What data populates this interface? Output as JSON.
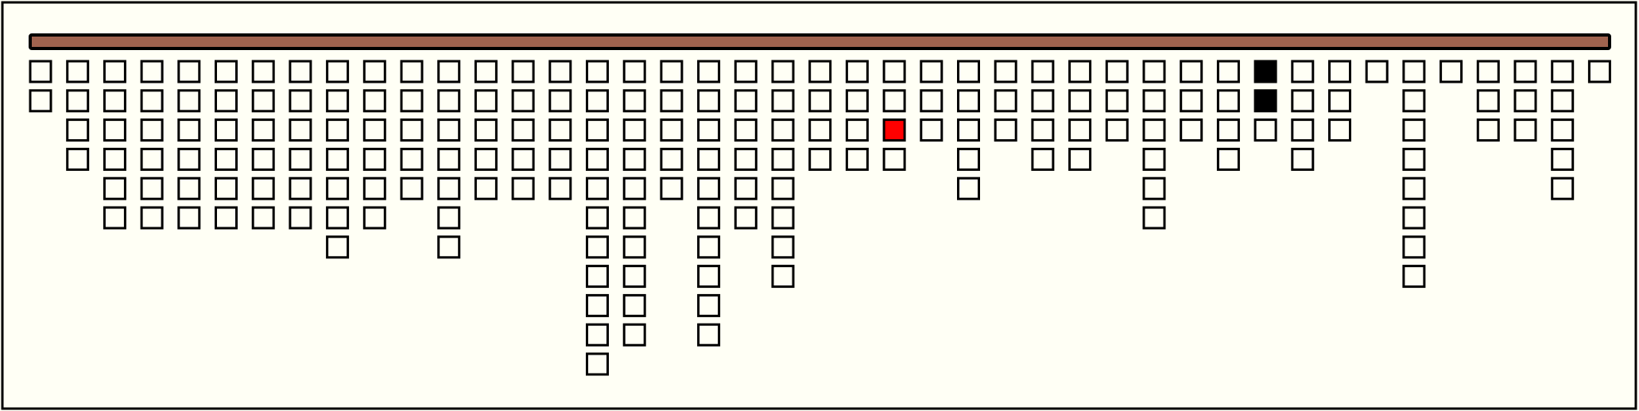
{
  "board": {
    "bar_color": "#a0634f",
    "columns": [
      [
        "#fffff5",
        "#fffff5"
      ],
      [
        "#fffff5",
        "#fffff5",
        "#fffff5",
        "#fffff5"
      ],
      [
        "#fffff5",
        "#fffff5",
        "#fffff5",
        "#fffff5",
        "#fffff5",
        "#fffff5"
      ],
      [
        "#fffff5",
        "#fffff5",
        "#fffff5",
        "#fffff5",
        "#fffff5",
        "#fffff5"
      ],
      [
        "#fffff5",
        "#fffff5",
        "#fffff5",
        "#fffff5",
        "#fffff5",
        "#fffff5"
      ],
      [
        "#fffff5",
        "#fffff5",
        "#fffff5",
        "#fffff5",
        "#fffff5",
        "#fffff5"
      ],
      [
        "#fffff5",
        "#fffff5",
        "#fffff5",
        "#fffff5",
        "#fffff5",
        "#fffff5"
      ],
      [
        "#fffff5",
        "#fffff5",
        "#fffff5",
        "#fffff5",
        "#fffff5",
        "#fffff5"
      ],
      [
        "#fffff5",
        "#fffff5",
        "#fffff5",
        "#fffff5",
        "#fffff5",
        "#fffff5",
        "#fffff5"
      ],
      [
        "#fffff5",
        "#fffff5",
        "#fffff5",
        "#fffff5",
        "#fffff5",
        "#fffff5"
      ],
      [
        "#fffff5",
        "#fffff5",
        "#fffff5",
        "#fffff5",
        "#fffff5"
      ],
      [
        "#fffff5",
        "#fffff5",
        "#fffff5",
        "#fffff5",
        "#fffff5",
        "#fffff5",
        "#fffff5"
      ],
      [
        "#fffff5",
        "#fffff5",
        "#fffff5",
        "#fffff5",
        "#fffff5"
      ],
      [
        "#fffff5",
        "#fffff5",
        "#fffff5",
        "#fffff5",
        "#fffff5"
      ],
      [
        "#fffff5",
        "#fffff5",
        "#fffff5",
        "#fffff5",
        "#fffff5"
      ],
      [
        "#fffff5",
        "#fffff5",
        "#fffff5",
        "#fffff5",
        "#fffff5",
        "#fffff5",
        "#fffff5",
        "#fffff5",
        "#fffff5",
        "#fffff5",
        "#fffff5"
      ],
      [
        "#fffff5",
        "#fffff5",
        "#fffff5",
        "#fffff5",
        "#fffff5",
        "#fffff5",
        "#fffff5",
        "#fffff5",
        "#fffff5",
        "#fffff5"
      ],
      [
        "#fffff5",
        "#fffff5",
        "#fffff5",
        "#fffff5",
        "#fffff5"
      ],
      [
        "#fffff5",
        "#fffff5",
        "#fffff5",
        "#fffff5",
        "#fffff5",
        "#fffff5",
        "#fffff5",
        "#fffff5",
        "#fffff5",
        "#fffff5"
      ],
      [
        "#fffff5",
        "#fffff5",
        "#fffff5",
        "#fffff5",
        "#fffff5",
        "#fffff5"
      ],
      [
        "#fffff5",
        "#fffff5",
        "#fffff5",
        "#fffff5",
        "#fffff5",
        "#fffff5",
        "#fffff5",
        "#fffff5"
      ],
      [
        "#fffff5",
        "#fffff5",
        "#fffff5",
        "#fffff5"
      ],
      [
        "#fffff5",
        "#fffff5",
        "#fffff5",
        "#fffff5"
      ],
      [
        "#fffff5",
        "#fffff5",
        "#ff0000",
        "#fffff5"
      ],
      [
        "#fffff5",
        "#fffff5",
        "#fffff5"
      ],
      [
        "#fffff5",
        "#fffff5",
        "#fffff5",
        "#fffff5",
        "#fffff5"
      ],
      [
        "#fffff5",
        "#fffff5",
        "#fffff5"
      ],
      [
        "#fffff5",
        "#fffff5",
        "#fffff5",
        "#fffff5"
      ],
      [
        "#fffff5",
        "#fffff5",
        "#fffff5",
        "#fffff5"
      ],
      [
        "#fffff5",
        "#fffff5",
        "#fffff5"
      ],
      [
        "#fffff5",
        "#fffff5",
        "#fffff5",
        "#fffff5",
        "#fffff5",
        "#fffff5"
      ],
      [
        "#fffff5",
        "#fffff5",
        "#fffff5"
      ],
      [
        "#fffff5",
        "#fffff5",
        "#fffff5",
        "#fffff5"
      ],
      [
        "#000000",
        "#000000",
        "#fffff5"
      ],
      [
        "#fffff5",
        "#fffff5",
        "#fffff5",
        "#fffff5"
      ],
      [
        "#fffff5",
        "#fffff5",
        "#fffff5"
      ],
      [
        "#fffff5"
      ],
      [
        "#fffff5",
        "#fffff5",
        "#fffff5",
        "#fffff5",
        "#fffff5",
        "#fffff5",
        "#fffff5",
        "#fffff5"
      ],
      [
        "#fffff5"
      ],
      [
        "#fffff5",
        "#fffff5",
        "#fffff5"
      ],
      [
        "#fffff5",
        "#fffff5",
        "#fffff5"
      ],
      [
        "#fffff5",
        "#fffff5",
        "#fffff5",
        "#fffff5",
        "#fffff5"
      ],
      [
        "#fffff5"
      ]
    ]
  }
}
